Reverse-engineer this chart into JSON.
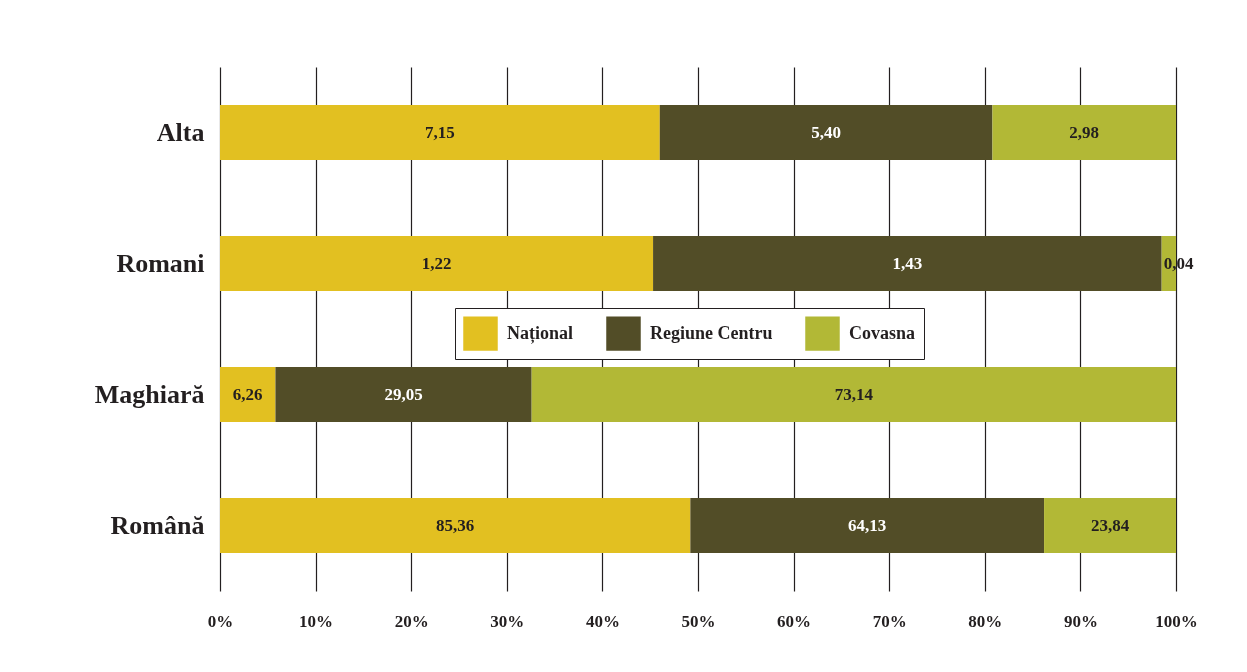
{
  "chart_data": {
    "type": "bar",
    "orientation": "horizontal",
    "stacked": true,
    "categories": [
      "Alta",
      "Romani",
      "Maghiară",
      "Română"
    ],
    "series": [
      {
        "name": "Național",
        "color": "#e2c021",
        "values": [
          46.0,
          45.3,
          5.8,
          49.2
        ]
      },
      {
        "name": "Regiune Centru",
        "color": "#524d27",
        "values": [
          34.8,
          53.2,
          26.8,
          37.0
        ]
      },
      {
        "name": "Covasna",
        "color": "#b2b836",
        "values": [
          19.2,
          1.5,
          67.4,
          13.8
        ]
      }
    ],
    "annotations": [
      "7,15",
      "5,40",
      "2,98",
      "1,22",
      "1,43",
      "0,04",
      "6,26",
      "29,05",
      "73,14",
      "85,36",
      "64,13",
      "23,84"
    ],
    "xlim": [
      0,
      100
    ],
    "xticks": [
      {
        "value": 0,
        "label": "0%"
      },
      {
        "value": 10,
        "label": "10%"
      },
      {
        "value": 20,
        "label": "20%"
      },
      {
        "value": 30,
        "label": "30%"
      },
      {
        "value": 40,
        "label": "40%"
      },
      {
        "value": 50,
        "label": "50%"
      },
      {
        "value": 60,
        "label": "60%"
      },
      {
        "value": 70,
        "label": "70%"
      },
      {
        "value": 80,
        "label": "80%"
      },
      {
        "value": 90,
        "label": "90%"
      },
      {
        "value": 100,
        "label": "100%"
      }
    ],
    "grid": "x",
    "legend": "center"
  }
}
